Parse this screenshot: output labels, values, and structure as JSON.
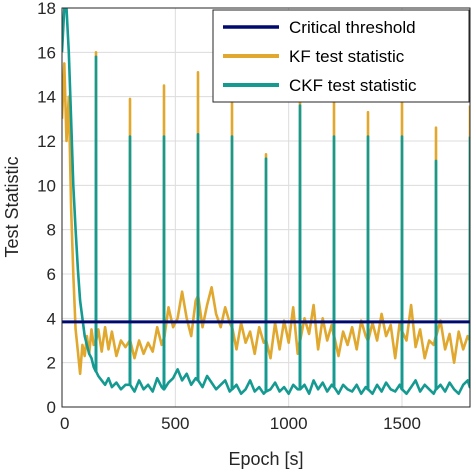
{
  "chart_data": {
    "type": "line",
    "title": "",
    "xlabel": "Epoch [s]",
    "ylabel": "Test Statistic",
    "xlim": [
      0,
      1800
    ],
    "ylim": [
      0,
      18
    ],
    "xticks": [
      0,
      500,
      1000,
      1500
    ],
    "yticks": [
      0,
      2,
      4,
      6,
      8,
      10,
      12,
      14,
      16,
      18
    ],
    "grid": true,
    "legend_position": "top-right",
    "series": [
      {
        "name": "Critical threshold",
        "color": "#000a6e",
        "x": [
          0,
          1800
        ],
        "y": [
          3.84,
          3.84
        ]
      },
      {
        "name": "KF test statistic",
        "color": "#e0a82e",
        "x": [
          0,
          10,
          20,
          30,
          40,
          50,
          60,
          70,
          80,
          90,
          100,
          110,
          120,
          130,
          140,
          149,
          150,
          151,
          160,
          175,
          190,
          205,
          220,
          240,
          260,
          280,
          299,
          300,
          301,
          320,
          340,
          360,
          380,
          400,
          420,
          440,
          449,
          450,
          451,
          470,
          490,
          510,
          530,
          550,
          570,
          590,
          599,
          600,
          601,
          620,
          640,
          660,
          680,
          700,
          720,
          740,
          749,
          750,
          751,
          770,
          790,
          810,
          830,
          850,
          870,
          890,
          899,
          900,
          901,
          920,
          940,
          960,
          980,
          1000,
          1020,
          1040,
          1049,
          1050,
          1051,
          1070,
          1090,
          1110,
          1130,
          1150,
          1170,
          1190,
          1199,
          1200,
          1201,
          1220,
          1240,
          1260,
          1280,
          1300,
          1320,
          1340,
          1349,
          1350,
          1351,
          1370,
          1390,
          1410,
          1430,
          1450,
          1470,
          1490,
          1499,
          1500,
          1501,
          1520,
          1540,
          1560,
          1580,
          1600,
          1620,
          1640,
          1649,
          1650,
          1651,
          1670,
          1690,
          1710,
          1730,
          1750,
          1770,
          1790,
          1799,
          1800
        ],
        "y": [
          13,
          15.5,
          12,
          14,
          9,
          6,
          3.5,
          2.5,
          1.5,
          2.8,
          2.3,
          3.2,
          2.4,
          3.5,
          2.8,
          3.0,
          16.0,
          3.0,
          3.5,
          2.5,
          3.6,
          2.6,
          3.4,
          2.3,
          3.0,
          2.7,
          3.0,
          13.9,
          3.0,
          2.2,
          3.0,
          2.4,
          2.9,
          2.5,
          3.6,
          2.8,
          3.1,
          14.5,
          3.1,
          4.5,
          3.6,
          4.0,
          5.2,
          4.0,
          3.2,
          4.8,
          5.0,
          15.1,
          5.0,
          3.6,
          4.6,
          5.4,
          4.2,
          3.6,
          4.5,
          3.8,
          3.6,
          14.1,
          3.6,
          2.6,
          3.8,
          2.9,
          3.4,
          2.4,
          3.6,
          2.9,
          3.0,
          11.4,
          3.0,
          2.2,
          3.8,
          2.6,
          3.9,
          2.9,
          4.5,
          2.4,
          3.0,
          14.5,
          3.0,
          4.0,
          3.3,
          4.6,
          2.6,
          4.0,
          3.0,
          3.7,
          3.2,
          14.1,
          3.2,
          2.3,
          3.4,
          2.8,
          3.6,
          2.6,
          3.9,
          3.2,
          3.0,
          13.3,
          3.0,
          3.8,
          3.0,
          4.2,
          3.2,
          3.7,
          2.2,
          3.8,
          3.4,
          14.6,
          3.4,
          3.0,
          4.6,
          2.7,
          3.5,
          2.2,
          3.0,
          2.8,
          3.2,
          12.6,
          3.2,
          3.9,
          2.6,
          3.3,
          2.0,
          3.4,
          2.6,
          3.2,
          3.0,
          13.6
        ]
      },
      {
        "name": "CKF  test statistic",
        "color": "#159a91",
        "x": [
          0,
          10,
          20,
          30,
          40,
          50,
          60,
          70,
          80,
          90,
          100,
          110,
          120,
          130,
          140,
          149,
          150,
          151,
          160,
          175,
          190,
          205,
          220,
          240,
          260,
          280,
          299,
          300,
          301,
          320,
          340,
          360,
          380,
          400,
          420,
          440,
          449,
          450,
          451,
          470,
          490,
          510,
          530,
          550,
          570,
          590,
          599,
          600,
          601,
          620,
          640,
          660,
          680,
          700,
          720,
          740,
          749,
          750,
          751,
          770,
          790,
          810,
          830,
          850,
          870,
          890,
          899,
          900,
          901,
          920,
          940,
          960,
          980,
          1000,
          1020,
          1040,
          1049,
          1050,
          1051,
          1070,
          1090,
          1110,
          1130,
          1150,
          1170,
          1190,
          1199,
          1200,
          1201,
          1220,
          1240,
          1260,
          1280,
          1300,
          1320,
          1340,
          1349,
          1350,
          1351,
          1370,
          1390,
          1410,
          1430,
          1450,
          1470,
          1490,
          1499,
          1500,
          1501,
          1520,
          1540,
          1560,
          1580,
          1600,
          1620,
          1640,
          1649,
          1650,
          1651,
          1670,
          1690,
          1710,
          1730,
          1750,
          1770,
          1790,
          1799,
          1800
        ],
        "y": [
          16,
          18,
          18,
          16,
          13,
          10,
          8,
          6.2,
          4.8,
          4.0,
          3.2,
          2.8,
          2.4,
          2.2,
          1.8,
          1.6,
          15.8,
          1.6,
          1.4,
          1.2,
          1.0,
          1.3,
          0.9,
          1.1,
          0.8,
          1.0,
          1.0,
          12.2,
          1.0,
          0.7,
          1.2,
          0.8,
          1.0,
          0.7,
          1.3,
          0.9,
          0.8,
          12.2,
          0.8,
          1.1,
          1.3,
          1.7,
          1.2,
          1.5,
          1.0,
          1.3,
          1.2,
          12.3,
          1.2,
          0.9,
          1.4,
          1.1,
          0.8,
          1.0,
          1.2,
          0.7,
          0.8,
          12.2,
          0.8,
          1.0,
          0.6,
          0.8,
          1.2,
          0.7,
          0.9,
          0.6,
          0.7,
          11.2,
          0.7,
          0.8,
          1.1,
          0.7,
          0.9,
          0.6,
          1.0,
          0.8,
          0.8,
          13.6,
          0.8,
          1.0,
          0.6,
          1.2,
          0.8,
          1.1,
          0.7,
          1.0,
          0.9,
          12.2,
          0.9,
          0.6,
          1.0,
          0.8,
          0.7,
          1.0,
          0.6,
          0.9,
          0.8,
          12.2,
          0.8,
          0.6,
          1.0,
          0.7,
          1.1,
          0.8,
          0.7,
          1.0,
          0.8,
          12.2,
          0.8,
          0.6,
          0.9,
          1.2,
          0.7,
          1.0,
          0.8,
          0.6,
          0.8,
          11.1,
          0.8,
          1.0,
          0.7,
          1.1,
          0.8,
          0.6,
          1.0,
          1.2,
          0.9,
          12.2
        ]
      }
    ]
  }
}
